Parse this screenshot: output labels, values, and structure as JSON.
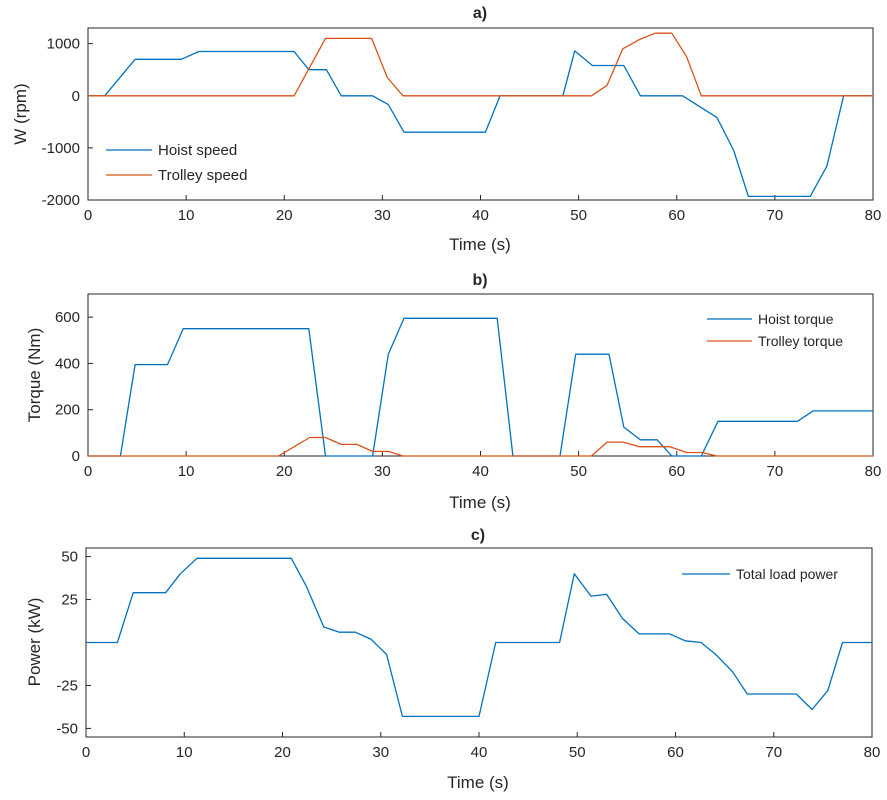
{
  "colors": {
    "blue": "#0072BD",
    "orange": "#D95319",
    "axis": "#262626"
  },
  "chart_data": [
    {
      "type": "line",
      "title": "a)",
      "xlabel": "Time (s)",
      "ylabel": "W (rpm)",
      "xlim": [
        0,
        80
      ],
      "ylim": [
        -2000,
        1300
      ],
      "xticks": [
        0,
        10,
        20,
        30,
        40,
        50,
        60,
        70,
        80
      ],
      "yticks": [
        -2000,
        -1000,
        0,
        1000
      ],
      "legend_position": "bottom-left",
      "grid": false,
      "series": [
        {
          "name": "Hoist speed",
          "color": "#0072BD",
          "x": [
            0,
            1.7,
            4.8,
            9.5,
            11.3,
            21,
            22.5,
            24.3,
            25.8,
            29,
            30.6,
            32.2,
            40.5,
            42,
            48.4,
            49.6,
            51.4,
            54.6,
            56.3,
            60.6,
            64.1,
            65.8,
            67.3,
            73.6,
            75.3,
            77,
            80
          ],
          "y": [
            0,
            0,
            700,
            700,
            850,
            850,
            500,
            500,
            0,
            0,
            -170,
            -700,
            -700,
            0,
            0,
            860,
            580,
            580,
            0,
            0,
            -420,
            -1050,
            -1930,
            -1930,
            -1350,
            0,
            0
          ]
        },
        {
          "name": "Trolley speed",
          "color": "#D95319",
          "x": [
            0,
            21,
            22.6,
            24.2,
            28.9,
            30.5,
            32.1,
            51.3,
            52.9,
            54.5,
            56.2,
            57.8,
            59.5,
            61,
            62.5,
            80
          ],
          "y": [
            0,
            0,
            550,
            1100,
            1100,
            350,
            0,
            0,
            200,
            900,
            1080,
            1200,
            1200,
            750,
            0,
            0
          ]
        }
      ]
    },
    {
      "type": "line",
      "title": "b)",
      "xlabel": "Time (s)",
      "ylabel": "Torque (Nm)",
      "xlim": [
        0,
        80
      ],
      "ylim": [
        0,
        700
      ],
      "xticks": [
        0,
        10,
        20,
        30,
        40,
        50,
        60,
        70,
        80
      ],
      "yticks": [
        0,
        200,
        400,
        600
      ],
      "legend_position": "top-right",
      "grid": false,
      "series": [
        {
          "name": "Hoist torque",
          "color": "#0072BD",
          "x": [
            0,
            3.3,
            4.8,
            8.1,
            9.7,
            22.5,
            24.2,
            29,
            30.6,
            32.2,
            41.7,
            43.3,
            48.1,
            49.7,
            53.1,
            54.6,
            56.3,
            58,
            59.5,
            62.5,
            64.2,
            72.3,
            73.9,
            80
          ],
          "y": [
            0,
            0,
            395,
            395,
            550,
            550,
            0,
            0,
            440,
            595,
            595,
            0,
            0,
            440,
            440,
            125,
            70,
            70,
            0,
            0,
            150,
            150,
            195,
            195
          ]
        },
        {
          "name": "Trolley torque",
          "color": "#D95319",
          "x": [
            0,
            19.4,
            21,
            22.6,
            24.2,
            25.8,
            27.4,
            29,
            30.6,
            32.1,
            51.3,
            52.9,
            54.5,
            56.2,
            59.3,
            61,
            62.6,
            64.1,
            80
          ],
          "y": [
            0,
            0,
            40,
            80,
            80,
            50,
            50,
            20,
            20,
            0,
            0,
            60,
            60,
            40,
            40,
            15,
            15,
            0,
            0
          ]
        }
      ]
    },
    {
      "type": "line",
      "title": "c)",
      "xlabel": "Time (s)",
      "ylabel": "Power (kW)",
      "xlim": [
        0,
        80
      ],
      "ylim": [
        -55,
        55
      ],
      "xticks": [
        0,
        10,
        20,
        30,
        40,
        50,
        60,
        70,
        80
      ],
      "yticks": [
        -50,
        -25,
        25,
        50
      ],
      "legend_position": "top-right",
      "grid": false,
      "series": [
        {
          "name": "Total load power",
          "color": "#0072BD",
          "x": [
            0,
            3.2,
            4.8,
            8.1,
            9.6,
            11.3,
            20.9,
            22.4,
            24.2,
            25.8,
            27.4,
            29,
            30.6,
            32.2,
            40,
            41.7,
            48.2,
            49.7,
            51.4,
            53,
            54.6,
            56.3,
            59.4,
            61,
            62.6,
            64.1,
            65.8,
            67.3,
            72.3,
            73.9,
            75.5,
            77,
            80
          ],
          "y": [
            0,
            0,
            29,
            29,
            40,
            49,
            49,
            33,
            9,
            6,
            6,
            2,
            -7,
            -43,
            -43,
            0,
            0,
            40,
            27,
            28,
            14,
            5,
            5,
            1,
            0,
            -7,
            -17,
            -30,
            -30,
            -39,
            -28,
            0,
            0
          ]
        }
      ]
    }
  ]
}
